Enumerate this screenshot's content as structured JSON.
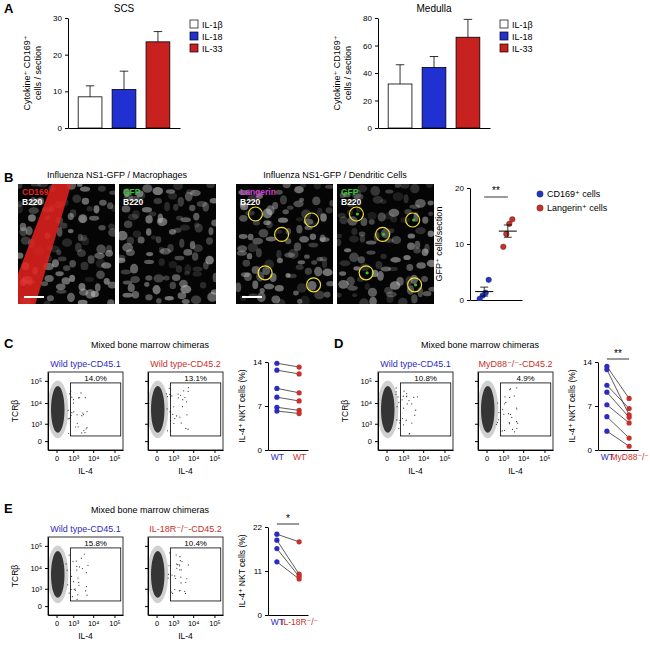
{
  "chart_data": [
    {
      "type": "bar",
      "panel": "A",
      "title": "SCS",
      "y_label": [
        "Cytokine⁺ CD169⁺",
        "cells / section"
      ],
      "categories": [
        "IL-1β",
        "IL-18",
        "IL-33"
      ],
      "values": [
        8.5,
        10.5,
        23.5
      ],
      "errors": [
        3,
        5,
        2.8
      ],
      "colors": [
        "#ffffff",
        "#2130d0",
        "#c7221f"
      ],
      "ylim": [
        0,
        30
      ],
      "yticks": [
        0,
        10,
        20,
        30
      ],
      "legend": "right",
      "tick_labels": "y"
    },
    {
      "type": "bar",
      "title": "Medulla",
      "y_label": [
        "Cytokine⁺ CD169⁺",
        "cells / section"
      ],
      "categories": [
        "IL-1β",
        "IL-18",
        "IL-33"
      ],
      "values": [
        32,
        44,
        66
      ],
      "errors": [
        14,
        8,
        13
      ],
      "colors": [
        "#ffffff",
        "#2130d0",
        "#c7221f"
      ],
      "ylim": [
        0,
        80
      ],
      "yticks": [
        0,
        20,
        40,
        60,
        80
      ],
      "legend": "right",
      "tick_labels": "y"
    },
    {
      "type": "image",
      "panel": "B",
      "title": "Influenza NS1-GFP / Macrophages",
      "images": [
        [
          {
            "text": "CD169",
            "color": "#e8231e"
          },
          {
            "text": "B220",
            "color": "#ffffff"
          }
        ],
        [
          {
            "text": "GFP",
            "color": "#35c435"
          },
          {
            "text": "B220",
            "color": "#ffffff"
          }
        ]
      ]
    },
    {
      "type": "image",
      "title": "Influenza NS1-GFP / Dendritic Cells",
      "images": [
        [
          {
            "text": "Langerin",
            "color": "#d040d0"
          },
          {
            "text": "B220",
            "color": "#ffffff"
          }
        ],
        [
          {
            "text": "GFP",
            "color": "#35c435"
          },
          {
            "text": "B220",
            "color": "#ffffff"
          }
        ]
      ]
    },
    {
      "type": "scatter",
      "y_label": "GFP⁺ cells/section",
      "series": [
        {
          "name": "CD169⁺ cells",
          "color": "#2233cc",
          "values": [
            0.2,
            0.8,
            1.3,
            3.6
          ],
          "mean": 1.5,
          "sem": 0.8
        },
        {
          "name": "Langerin⁺ cells",
          "color": "#c8302a",
          "values": [
            9.5,
            11.8,
            13.6,
            14.4
          ],
          "mean": 12.3,
          "sem": 1.1
        }
      ],
      "ylim": [
        0,
        20
      ],
      "yticks": [
        0,
        10,
        20
      ],
      "legend": "right",
      "annotation": "**",
      "tick_labels": "y"
    },
    {
      "type": "flow",
      "panel": "C",
      "subtitle": "Mixed bone marrow chimeras",
      "title": "Wild type-CD45.1",
      "color": "#2b2bbf",
      "x_label": "IL-4",
      "y_label": "TCRβ",
      "log": true,
      "xlim": [
        -300,
        250000
      ],
      "ylim": [
        -300,
        250000
      ],
      "xticks": [
        0,
        {
          "value": 1000,
          "label": "10³"
        },
        {
          "value": 10000,
          "label": "10⁴"
        },
        {
          "value": 100000,
          "label": "10⁵"
        }
      ],
      "yticks": [
        0,
        {
          "value": 1000,
          "label": "10³"
        },
        {
          "value": 10000,
          "label": "10⁴"
        },
        {
          "value": 100000,
          "label": "10⁵"
        }
      ],
      "gate": {
        "value": 14.0,
        "label": "14.0%"
      }
    },
    {
      "type": "flow",
      "title": "Wild type-CD45.2",
      "color": "#c8302a",
      "x_label": "IL-4",
      "log": true,
      "xlim": [
        -300,
        250000
      ],
      "ylim": [
        -300,
        250000
      ],
      "xticks": [
        0,
        {
          "value": 1000,
          "label": "10³"
        },
        {
          "value": 10000,
          "label": "10⁴"
        },
        {
          "value": 100000,
          "label": "10⁵"
        }
      ],
      "yticks": [
        0,
        {
          "value": 1000,
          "label": "10³"
        },
        {
          "value": 10000,
          "label": "10⁴"
        },
        {
          "value": 100000,
          "label": "10⁵"
        }
      ],
      "gate": {
        "value": 13.1,
        "label": "13.1%"
      },
      "tick_labels": "x"
    },
    {
      "type": "paired",
      "y_label": "IL-4⁺ NKT cells (%)",
      "categories": [
        "WT",
        "WT"
      ],
      "colors": [
        "#2b2bbf",
        "#c8302a"
      ],
      "ylim": [
        0,
        14
      ],
      "yticks": [
        0,
        7,
        14
      ],
      "series": [
        {
          "values": [
            13.8,
            13.2
          ]
        },
        {
          "values": [
            12.7,
            12.1
          ]
        },
        {
          "values": [
            9.8,
            9.1
          ]
        },
        {
          "values": [
            8.4,
            7.8
          ]
        },
        {
          "values": [
            6.8,
            6.3
          ]
        },
        {
          "values": [
            6.2,
            5.8
          ]
        }
      ]
    },
    {
      "type": "flow",
      "panel": "D",
      "subtitle": "Mixed bone marrow chimeras",
      "title": "Wild type-CD45.1",
      "color": "#2b2bbf",
      "x_label": "IL-4",
      "y_label": "TCRβ",
      "log": true,
      "xlim": [
        -300,
        250000
      ],
      "ylim": [
        -300,
        250000
      ],
      "xticks": [
        0,
        {
          "value": 1000,
          "label": "10³"
        },
        {
          "value": 10000,
          "label": "10⁴"
        },
        {
          "value": 100000,
          "label": "10⁵"
        }
      ],
      "yticks": [
        0,
        {
          "value": 1000,
          "label": "10³"
        },
        {
          "value": 10000,
          "label": "10⁴"
        },
        {
          "value": 100000,
          "label": "10⁵"
        }
      ],
      "gate": {
        "value": 10.8,
        "label": "10.8%"
      }
    },
    {
      "type": "flow",
      "title": "MyD88⁻/⁻-CD45.2",
      "color": "#c8302a",
      "x_label": "IL-4",
      "log": true,
      "xlim": [
        -300,
        250000
      ],
      "ylim": [
        -300,
        250000
      ],
      "xticks": [
        0,
        {
          "value": 1000,
          "label": "10³"
        },
        {
          "value": 10000,
          "label": "10⁴"
        },
        {
          "value": 100000,
          "label": "10⁵"
        }
      ],
      "yticks": [
        0,
        {
          "value": 1000,
          "label": "10³"
        },
        {
          "value": 10000,
          "label": "10⁴"
        },
        {
          "value": 100000,
          "label": "10⁵"
        }
      ],
      "gate": {
        "value": 4.9,
        "label": "4.9%"
      },
      "tick_labels": "x"
    },
    {
      "type": "paired",
      "y_label": "IL-4⁺ NKT cells (%)",
      "categories": [
        "WT",
        "MyD88⁻/⁻"
      ],
      "colors": [
        "#2b2bbf",
        "#c8302a"
      ],
      "ylim": [
        0,
        14
      ],
      "yticks": [
        0,
        7,
        14
      ],
      "annotation": "**",
      "series": [
        {
          "values": [
            13.3,
            8.2
          ]
        },
        {
          "values": [
            12.8,
            5.6
          ]
        },
        {
          "values": [
            10.3,
            6.6
          ]
        },
        {
          "values": [
            9.2,
            5.2
          ]
        },
        {
          "values": [
            7.2,
            4.3
          ]
        },
        {
          "values": [
            5.3,
            1.9
          ]
        },
        {
          "values": [
            3.0,
            0.6
          ]
        }
      ]
    },
    {
      "type": "flow",
      "panel": "E",
      "subtitle": "Mixed bone marrow chimeras",
      "title": "Wild type-CD45.1",
      "color": "#2b2bbf",
      "x_label": "IL-4",
      "y_label": "TCRβ",
      "log": true,
      "xlim": [
        -300,
        250000
      ],
      "ylim": [
        -300,
        250000
      ],
      "xticks": [
        0,
        {
          "value": 1000,
          "label": "10³"
        },
        {
          "value": 10000,
          "label": "10⁴"
        },
        {
          "value": 100000,
          "label": "10⁵"
        }
      ],
      "yticks": [
        0,
        {
          "value": 1000,
          "label": "10³"
        },
        {
          "value": 10000,
          "label": "10⁴"
        },
        {
          "value": 100000,
          "label": "10⁵"
        }
      ],
      "gate": {
        "value": 15.8,
        "label": "15.8%"
      }
    },
    {
      "type": "flow",
      "title": "IL-18R⁻/⁻-CD45.2",
      "color": "#c8302a",
      "x_label": "IL-4",
      "log": true,
      "xlim": [
        -300,
        250000
      ],
      "ylim": [
        -300,
        250000
      ],
      "xticks": [
        0,
        {
          "value": 1000,
          "label": "10³"
        },
        {
          "value": 10000,
          "label": "10⁴"
        },
        {
          "value": 100000,
          "label": "10⁵"
        }
      ],
      "yticks": [
        0,
        {
          "value": 1000,
          "label": "10³"
        },
        {
          "value": 10000,
          "label": "10⁴"
        },
        {
          "value": 100000,
          "label": "10⁵"
        }
      ],
      "gate": {
        "value": 10.4,
        "label": "10.4%"
      },
      "tick_labels": "x"
    },
    {
      "type": "paired",
      "y_label": "IL-4⁺ NKT cells (%)",
      "categories": [
        "WT",
        "IL-18R⁻/⁻"
      ],
      "colors": [
        "#2b2bbf",
        "#c8302a"
      ],
      "ylim": [
        0,
        22
      ],
      "yticks": [
        0,
        11,
        22
      ],
      "annotation": "*",
      "series": [
        {
          "values": [
            20.2,
            18.3
          ]
        },
        {
          "values": [
            18.7,
            10.2
          ]
        },
        {
          "values": [
            16.6,
            9.6
          ]
        },
        {
          "values": [
            13.3,
            9.0
          ]
        }
      ]
    }
  ]
}
